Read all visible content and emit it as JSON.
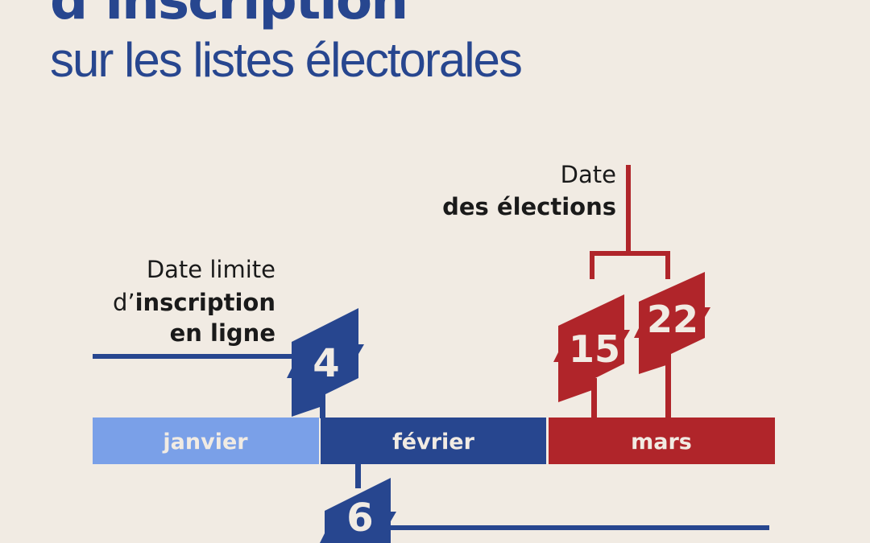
{
  "title": {
    "line1": "d’inscription",
    "line2": "sur les listes électorales"
  },
  "colors": {
    "background": "#f1ebe3",
    "blue": "#27468f",
    "light_blue": "#7aa0e8",
    "red": "#b0252a"
  },
  "months": [
    {
      "label": "janvier",
      "color": "#7aa0e8"
    },
    {
      "label": "février",
      "color": "#27468f"
    },
    {
      "label": "mars",
      "color": "#b0252a"
    }
  ],
  "online_deadline": {
    "line1": "Date limite",
    "line2_prefix": "d’",
    "line2_bold": "inscription",
    "line3": "en ligne",
    "day": "4"
  },
  "elections": {
    "line1": "Date",
    "line2": "des élections",
    "days": [
      "15",
      "22"
    ]
  },
  "other_deadline": {
    "day": "6"
  }
}
